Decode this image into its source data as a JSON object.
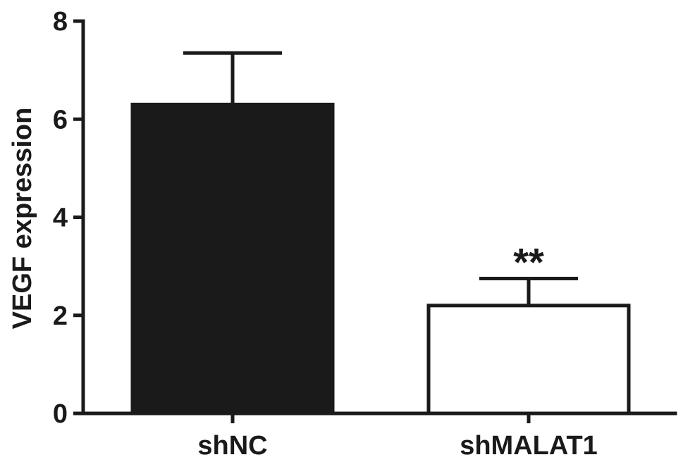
{
  "chart_data": {
    "type": "bar",
    "categories": [
      "shNC",
      "shMALAT1"
    ],
    "values": [
      6.3,
      2.2
    ],
    "errors": [
      1.05,
      0.55
    ],
    "annotations": [
      "",
      "**"
    ],
    "bar_fills": [
      "#1a1a1a",
      "#ffffff"
    ],
    "ylabel": "VEGF expression",
    "xlabel": "",
    "ylim": [
      0,
      8
    ],
    "yticks": [
      0,
      2,
      4,
      6,
      8
    ],
    "grid": false
  }
}
